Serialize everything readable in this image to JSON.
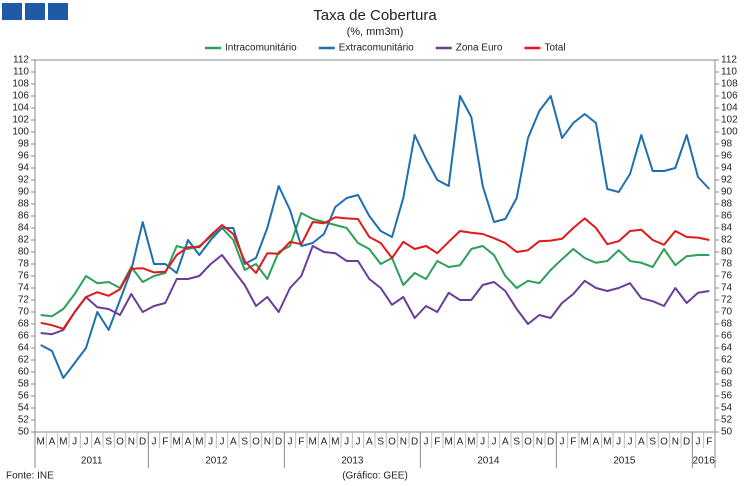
{
  "chart_data": {
    "type": "line",
    "title": "Taxa de Cobertura",
    "subtitle": "(%, mm3m)",
    "source": "Fonte: INE",
    "credit": "(Gráfico: GEE)",
    "categories": [
      "M",
      "A",
      "M",
      "J",
      "J",
      "A",
      "S",
      "O",
      "N",
      "D",
      "J",
      "F",
      "M",
      "A",
      "M",
      "J",
      "J",
      "A",
      "S",
      "O",
      "N",
      "D",
      "J",
      "F",
      "M",
      "A",
      "M",
      "J",
      "J",
      "A",
      "S",
      "O",
      "N",
      "D",
      "J",
      "F",
      "M",
      "A",
      "M",
      "J",
      "J",
      "A",
      "S",
      "O",
      "N",
      "D",
      "J",
      "F",
      "M",
      "A",
      "M",
      "J",
      "J",
      "A",
      "S",
      "O",
      "N",
      "D",
      "J",
      "F"
    ],
    "years": [
      "2011",
      "2012",
      "2013",
      "2014",
      "2015",
      "2016"
    ],
    "ylim": [
      50,
      112
    ],
    "yticks": [
      50,
      52,
      54,
      56,
      58,
      60,
      62,
      64,
      66,
      68,
      70,
      72,
      74,
      76,
      78,
      80,
      82,
      84,
      86,
      88,
      90,
      92,
      94,
      96,
      98,
      100,
      102,
      104,
      106,
      108,
      110,
      112
    ],
    "grid": false,
    "legend": "top",
    "series": [
      {
        "name": "Intracomunitário",
        "color": "#2ca05a",
        "values": [
          69.5,
          69.3,
          70.5,
          73,
          76,
          74.8,
          75,
          74,
          77.5,
          75,
          76,
          76.5,
          81,
          80.5,
          81,
          82.5,
          84,
          82,
          77,
          78,
          75.5,
          80,
          81,
          86.5,
          85.5,
          85,
          84.5,
          84,
          81.5,
          80.5,
          78,
          79,
          74.5,
          76.5,
          75.5,
          78.5,
          77.5,
          77.8,
          80.5,
          81,
          79.5,
          76,
          74,
          75.2,
          74.8,
          77,
          78.8,
          80.5,
          79,
          78.2,
          78.5,
          80.3,
          78.5,
          78.2,
          77.5,
          80.5,
          77.8,
          79.3,
          79.5,
          79.5
        ]
      },
      {
        "name": "Extracomunitário",
        "color": "#1f6fb0",
        "values": [
          64.5,
          63.5,
          59,
          61.5,
          64,
          70,
          67,
          72,
          77,
          85,
          78,
          78,
          76.5,
          82,
          79.5,
          82,
          84,
          84,
          78,
          79,
          84,
          91,
          87,
          81,
          81.5,
          83,
          87.5,
          89,
          89.5,
          86,
          83.5,
          82.5,
          89,
          99.5,
          95.5,
          92,
          91,
          106,
          102.5,
          91,
          85,
          85.5,
          89,
          99,
          103.5,
          106,
          99,
          101.5,
          103,
          101.5,
          90.5,
          90,
          93,
          99.5,
          93.5,
          93.5,
          94,
          99.5,
          92.5,
          90.5
        ]
      },
      {
        "name": "Zona Euro",
        "color": "#6a3d9a",
        "values": [
          66.5,
          66.3,
          67,
          70,
          72.5,
          70.8,
          70.5,
          69.5,
          73,
          70,
          71,
          71.5,
          75.5,
          75.5,
          76,
          78,
          79.5,
          77,
          74.5,
          71,
          72.5,
          70,
          74,
          76,
          81,
          80,
          79.8,
          78.5,
          78.5,
          75.5,
          74,
          71.2,
          72.5,
          69,
          71,
          70,
          73.2,
          72,
          72,
          74.5,
          75,
          73.5,
          70.5,
          68,
          69.5,
          69,
          71.5,
          73,
          75.2,
          74,
          73.5,
          74,
          74.8,
          72.3,
          71.8,
          71,
          74,
          71.5,
          73.2,
          73.5
        ]
      },
      {
        "name": "Total",
        "color": "#e0191b",
        "values": [
          68.2,
          67.8,
          67.2,
          70,
          72.5,
          73.3,
          72.7,
          73.8,
          77.2,
          77.3,
          76.6,
          76.7,
          79.5,
          80.8,
          80.8,
          82.8,
          84.5,
          83,
          78.5,
          76.5,
          79.8,
          79.7,
          81.7,
          81.3,
          85,
          84.8,
          85.8,
          85.6,
          85.5,
          82.5,
          81.5,
          79,
          81.7,
          80.5,
          81,
          79.8,
          81.7,
          83.5,
          83.2,
          83,
          82.3,
          81.5,
          80,
          80.3,
          81.8,
          81.9,
          82.2,
          84,
          85.6,
          84,
          81.3,
          81.8,
          83.5,
          83.7,
          82,
          81.2,
          83.5,
          82.5,
          82.4,
          82
        ]
      }
    ]
  }
}
